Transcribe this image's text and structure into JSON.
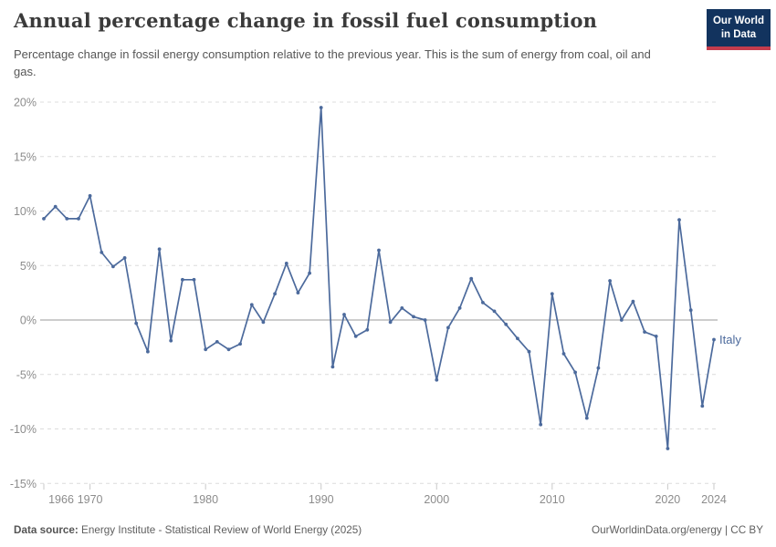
{
  "header": {
    "title": "Annual percentage change in fossil fuel consumption",
    "subtitle": "Percentage change in fossil energy consumption relative to the previous year. This is the sum of energy from coal, oil and gas.",
    "logo": {
      "line1": "Our World",
      "line2": "in Data"
    }
  },
  "chart_data": {
    "type": "line",
    "title": "Annual percentage change in fossil fuel consumption",
    "series_label": "Italy",
    "unit": "%",
    "ylim": [
      -15,
      20
    ],
    "y_ticks": [
      20,
      15,
      10,
      5,
      0,
      -5,
      -10,
      -15
    ],
    "x_ticks": [
      1966,
      1970,
      1980,
      1990,
      2000,
      2010,
      2020,
      2024
    ],
    "x": [
      1966,
      1967,
      1968,
      1969,
      1970,
      1971,
      1972,
      1973,
      1974,
      1975,
      1976,
      1977,
      1978,
      1979,
      1980,
      1981,
      1982,
      1983,
      1984,
      1985,
      1986,
      1987,
      1988,
      1989,
      1990,
      1991,
      1992,
      1993,
      1994,
      1995,
      1996,
      1997,
      1998,
      1999,
      2000,
      2001,
      2002,
      2003,
      2004,
      2005,
      2006,
      2007,
      2008,
      2009,
      2010,
      2011,
      2012,
      2013,
      2014,
      2015,
      2016,
      2017,
      2018,
      2019,
      2020,
      2021,
      2022,
      2023,
      2024
    ],
    "values": [
      9.3,
      10.4,
      9.3,
      9.3,
      11.4,
      6.2,
      4.9,
      5.7,
      -0.3,
      -2.9,
      6.5,
      -1.9,
      3.7,
      3.7,
      -2.7,
      -2.0,
      -2.7,
      -2.2,
      1.4,
      -0.2,
      2.4,
      5.2,
      2.5,
      4.3,
      19.5,
      -4.3,
      0.5,
      -1.5,
      -0.9,
      6.4,
      -0.2,
      1.1,
      0.3,
      0.0,
      -5.5,
      -0.7,
      1.1,
      3.8,
      1.6,
      0.8,
      -0.4,
      -1.7,
      -2.9,
      -9.6,
      2.4,
      -3.1,
      -4.8,
      -9.0,
      -4.4,
      3.6,
      0.0,
      1.7,
      -1.1,
      -1.5,
      -11.8,
      9.2,
      0.9,
      -7.9,
      -1.8
    ],
    "line_color": "#4C6A9C",
    "grid_color": "#dcdcdc",
    "zero_line_color": "#9b9b9b",
    "tick_mark_color": "#c9c9c9",
    "axis_label_color": "#8c8c8c",
    "legend_position": "end-of-line"
  },
  "footer": {
    "source_label": "Data source:",
    "source_text": " Energy Institute - Statistical Review of World Energy (2025)",
    "credit": "OurWorldinData.org/energy | CC BY"
  }
}
